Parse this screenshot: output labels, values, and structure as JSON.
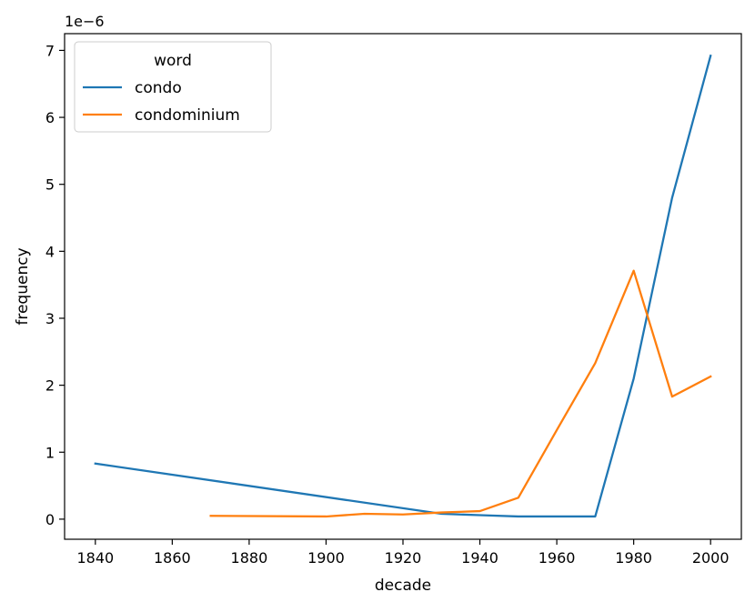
{
  "chart_data": {
    "type": "line",
    "title": "",
    "xlabel": "decade",
    "ylabel": "frequency",
    "y_scale_label": "1e−6",
    "xlim": [
      1832,
      2008
    ],
    "ylim": [
      -0.3,
      7.25
    ],
    "x_ticks": [
      1840,
      1860,
      1880,
      1900,
      1920,
      1940,
      1960,
      1980,
      2000
    ],
    "y_ticks": [
      0,
      1,
      2,
      3,
      4,
      5,
      6,
      7
    ],
    "grid": false,
    "legend": {
      "title": "word",
      "position": "top-left"
    },
    "series": [
      {
        "name": "condo",
        "color": "#1f77b4",
        "points": [
          [
            1840,
            0.83
          ],
          [
            1930,
            0.08
          ],
          [
            1940,
            0.06
          ],
          [
            1950,
            0.04
          ],
          [
            1960,
            0.04
          ],
          [
            1970,
            0.04
          ],
          [
            1980,
            2.1
          ],
          [
            1990,
            4.8
          ],
          [
            2000,
            6.92
          ]
        ]
      },
      {
        "name": "condominium",
        "color": "#ff7f0e",
        "points": [
          [
            1870,
            0.05
          ],
          [
            1900,
            0.04
          ],
          [
            1910,
            0.08
          ],
          [
            1920,
            0.07
          ],
          [
            1930,
            0.1
          ],
          [
            1940,
            0.12
          ],
          [
            1950,
            0.32
          ],
          [
            1960,
            1.33
          ],
          [
            1970,
            2.33
          ],
          [
            1980,
            3.71
          ],
          [
            1990,
            1.83
          ],
          [
            2000,
            2.13
          ]
        ]
      }
    ]
  }
}
